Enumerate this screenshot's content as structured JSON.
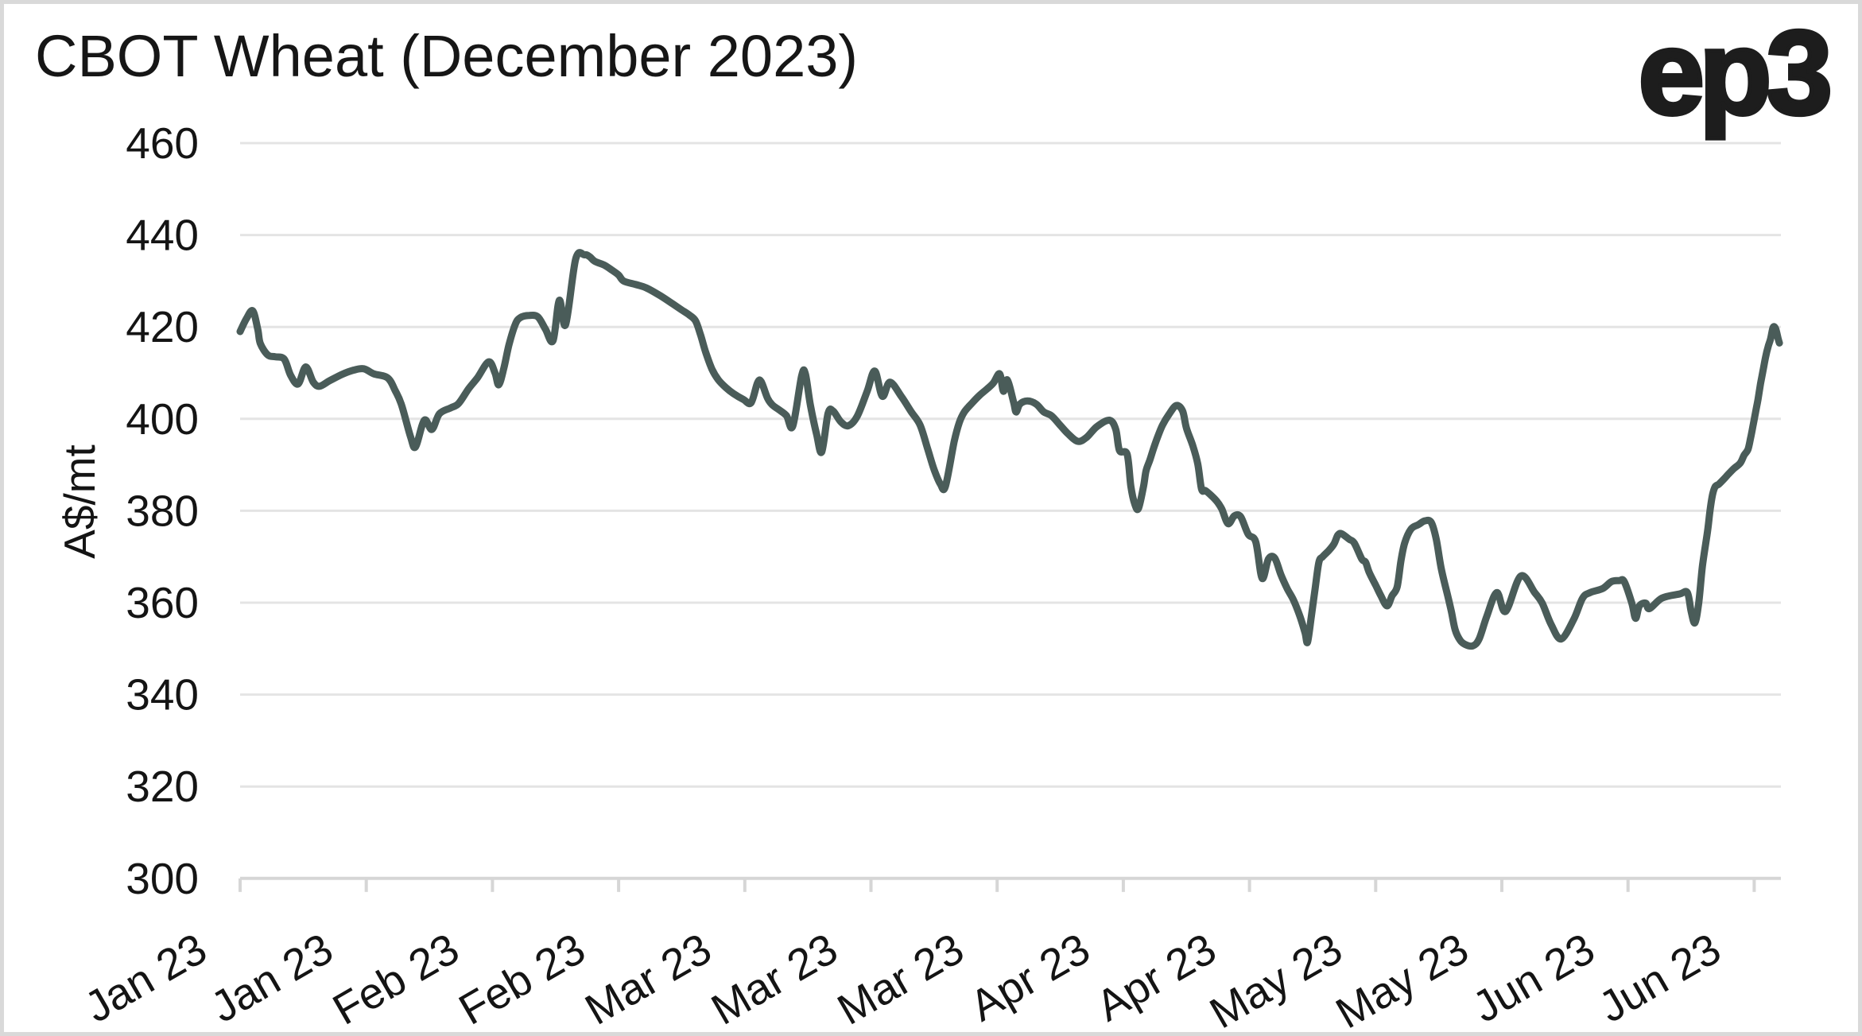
{
  "header": {
    "title": "CBOT Wheat (December 2023)",
    "logo_text": "ep3"
  },
  "colors": {
    "line": "#4a5c59",
    "gridline": "#e4e4e4",
    "axis": "#d6d6d6",
    "text": "#141414",
    "background": "#ffffff",
    "frame_border": "#d9d9d9"
  },
  "chart_data": {
    "type": "line",
    "title": "CBOT Wheat (December 2023)",
    "xlabel": "",
    "ylabel": "A$/mt",
    "ylim": [
      300,
      460
    ],
    "y_ticks": [
      300,
      320,
      340,
      360,
      380,
      400,
      420,
      440,
      460
    ],
    "x_tick_labels": [
      "Jan 23",
      "Jan 23",
      "Feb 23",
      "Feb 23",
      "Mar 23",
      "Mar 23",
      "Mar 23",
      "Apr 23",
      "Apr 23",
      "May 23",
      "May 23",
      "Jun 23",
      "Jun 23"
    ],
    "x_range_ticks": [
      0,
      12.2
    ],
    "grid": "horizontal-only",
    "legend": "none",
    "series": [
      {
        "name": "CBOT Wheat (December 2023)",
        "units": "A$/mt",
        "points": [
          [
            0.0,
            419.0
          ],
          [
            0.05,
            421.8
          ],
          [
            0.1,
            423.5
          ],
          [
            0.14,
            419.5
          ],
          [
            0.16,
            416.4
          ],
          [
            0.22,
            413.9
          ],
          [
            0.28,
            413.5
          ],
          [
            0.35,
            413.0
          ],
          [
            0.4,
            409.5
          ],
          [
            0.46,
            407.6
          ],
          [
            0.52,
            411.3
          ],
          [
            0.58,
            408.0
          ],
          [
            0.63,
            407.1
          ],
          [
            0.71,
            408.3
          ],
          [
            0.81,
            409.7
          ],
          [
            0.9,
            410.6
          ],
          [
            0.98,
            410.9
          ],
          [
            1.06,
            409.8
          ],
          [
            1.17,
            408.9
          ],
          [
            1.23,
            406.1
          ],
          [
            1.28,
            403.0
          ],
          [
            1.35,
            396.2
          ],
          [
            1.39,
            393.9
          ],
          [
            1.46,
            399.7
          ],
          [
            1.52,
            397.7
          ],
          [
            1.58,
            401.1
          ],
          [
            1.67,
            402.4
          ],
          [
            1.73,
            403.3
          ],
          [
            1.81,
            406.5
          ],
          [
            1.88,
            408.9
          ],
          [
            1.97,
            412.4
          ],
          [
            2.02,
            410.0
          ],
          [
            2.05,
            407.4
          ],
          [
            2.09,
            411.0
          ],
          [
            2.13,
            416.0
          ],
          [
            2.18,
            420.5
          ],
          [
            2.22,
            422.0
          ],
          [
            2.29,
            422.5
          ],
          [
            2.36,
            422.2
          ],
          [
            2.42,
            419.5
          ],
          [
            2.48,
            417.0
          ],
          [
            2.53,
            425.8
          ],
          [
            2.58,
            420.5
          ],
          [
            2.66,
            434.8
          ],
          [
            2.73,
            435.7
          ],
          [
            2.77,
            435.3
          ],
          [
            2.81,
            434.3
          ],
          [
            2.89,
            433.4
          ],
          [
            2.95,
            432.3
          ],
          [
            3.0,
            431.3
          ],
          [
            3.04,
            430.0
          ],
          [
            3.14,
            429.2
          ],
          [
            3.22,
            428.5
          ],
          [
            3.33,
            426.8
          ],
          [
            3.43,
            425.0
          ],
          [
            3.5,
            423.7
          ],
          [
            3.56,
            422.6
          ],
          [
            3.61,
            421.3
          ],
          [
            3.65,
            418.2
          ],
          [
            3.69,
            414.5
          ],
          [
            3.74,
            410.8
          ],
          [
            3.79,
            408.5
          ],
          [
            3.85,
            406.8
          ],
          [
            3.91,
            405.5
          ],
          [
            3.99,
            404.2
          ],
          [
            4.05,
            403.5
          ],
          [
            4.1,
            407.8
          ],
          [
            4.13,
            408.1
          ],
          [
            4.18,
            404.5
          ],
          [
            4.22,
            403.0
          ],
          [
            4.27,
            402.0
          ],
          [
            4.33,
            400.7
          ],
          [
            4.38,
            398.4
          ],
          [
            4.45,
            409.3
          ],
          [
            4.48,
            409.8
          ],
          [
            4.52,
            403.0
          ],
          [
            4.57,
            396.5
          ],
          [
            4.61,
            392.8
          ],
          [
            4.66,
            401.2
          ],
          [
            4.7,
            401.7
          ],
          [
            4.76,
            399.4
          ],
          [
            4.82,
            398.5
          ],
          [
            4.89,
            400.5
          ],
          [
            4.97,
            406.0
          ],
          [
            5.03,
            410.4
          ],
          [
            5.09,
            404.9
          ],
          [
            5.15,
            408.0
          ],
          [
            5.24,
            404.9
          ],
          [
            5.32,
            401.5
          ],
          [
            5.39,
            398.6
          ],
          [
            5.45,
            393.4
          ],
          [
            5.5,
            389.0
          ],
          [
            5.55,
            385.8
          ],
          [
            5.59,
            385.3
          ],
          [
            5.66,
            395.1
          ],
          [
            5.7,
            399.2
          ],
          [
            5.74,
            401.5
          ],
          [
            5.8,
            403.4
          ],
          [
            5.86,
            405.1
          ],
          [
            5.92,
            406.5
          ],
          [
            5.97,
            407.8
          ],
          [
            6.02,
            409.8
          ],
          [
            6.05,
            406.0
          ],
          [
            6.08,
            408.5
          ],
          [
            6.13,
            403.7
          ],
          [
            6.15,
            401.5
          ],
          [
            6.18,
            403.2
          ],
          [
            6.24,
            403.9
          ],
          [
            6.31,
            403.2
          ],
          [
            6.37,
            401.5
          ],
          [
            6.43,
            400.7
          ],
          [
            6.5,
            398.6
          ],
          [
            6.56,
            396.8
          ],
          [
            6.64,
            395.1
          ],
          [
            6.71,
            396.0
          ],
          [
            6.79,
            398.3
          ],
          [
            6.89,
            399.7
          ],
          [
            6.94,
            397.7
          ],
          [
            6.97,
            393.1
          ],
          [
            7.03,
            392.3
          ],
          [
            7.06,
            385.3
          ],
          [
            7.09,
            381.5
          ],
          [
            7.12,
            380.5
          ],
          [
            7.16,
            385.3
          ],
          [
            7.18,
            388.7
          ],
          [
            7.21,
            391.0
          ],
          [
            7.24,
            393.6
          ],
          [
            7.27,
            395.9
          ],
          [
            7.31,
            398.6
          ],
          [
            7.36,
            400.9
          ],
          [
            7.42,
            402.9
          ],
          [
            7.47,
            401.7
          ],
          [
            7.5,
            398.0
          ],
          [
            7.55,
            394.2
          ],
          [
            7.59,
            390.2
          ],
          [
            7.62,
            384.7
          ],
          [
            7.65,
            384.4
          ],
          [
            7.69,
            383.5
          ],
          [
            7.74,
            382.1
          ],
          [
            7.78,
            380.4
          ],
          [
            7.83,
            377.2
          ],
          [
            7.88,
            378.9
          ],
          [
            7.93,
            378.7
          ],
          [
            7.99,
            374.9
          ],
          [
            8.05,
            373.2
          ],
          [
            8.1,
            365.3
          ],
          [
            8.15,
            369.5
          ],
          [
            8.2,
            369.7
          ],
          [
            8.25,
            366.0
          ],
          [
            8.3,
            363.0
          ],
          [
            8.35,
            360.5
          ],
          [
            8.4,
            357.0
          ],
          [
            8.44,
            353.5
          ],
          [
            8.46,
            351.4
          ],
          [
            8.49,
            357.0
          ],
          [
            8.52,
            363.0
          ],
          [
            8.55,
            368.8
          ],
          [
            8.58,
            370.0
          ],
          [
            8.63,
            371.4
          ],
          [
            8.67,
            372.8
          ],
          [
            8.7,
            374.7
          ],
          [
            8.73,
            375.0
          ],
          [
            8.79,
            373.8
          ],
          [
            8.83,
            373.0
          ],
          [
            8.89,
            369.5
          ],
          [
            8.92,
            368.8
          ],
          [
            8.95,
            366.5
          ],
          [
            9.0,
            363.8
          ],
          [
            9.04,
            361.6
          ],
          [
            9.09,
            359.3
          ],
          [
            9.13,
            361.5
          ],
          [
            9.17,
            363.4
          ],
          [
            9.2,
            369.0
          ],
          [
            9.23,
            373.0
          ],
          [
            9.28,
            376.0
          ],
          [
            9.34,
            377.0
          ],
          [
            9.39,
            377.8
          ],
          [
            9.44,
            377.5
          ],
          [
            9.48,
            373.8
          ],
          [
            9.52,
            367.4
          ],
          [
            9.57,
            361.6
          ],
          [
            9.6,
            358.1
          ],
          [
            9.63,
            354.1
          ],
          [
            9.67,
            351.8
          ],
          [
            9.71,
            350.9
          ],
          [
            9.77,
            350.6
          ],
          [
            9.82,
            352.1
          ],
          [
            9.88,
            357.0
          ],
          [
            9.96,
            362.2
          ],
          [
            10.03,
            358.1
          ],
          [
            10.15,
            365.8
          ],
          [
            10.26,
            362.2
          ],
          [
            10.32,
            359.9
          ],
          [
            10.39,
            355.3
          ],
          [
            10.47,
            352.1
          ],
          [
            10.57,
            356.4
          ],
          [
            10.64,
            361.0
          ],
          [
            10.7,
            362.2
          ],
          [
            10.8,
            363.1
          ],
          [
            10.87,
            364.6
          ],
          [
            10.93,
            364.8
          ],
          [
            10.97,
            364.6
          ],
          [
            11.03,
            359.9
          ],
          [
            11.06,
            356.6
          ],
          [
            11.09,
            359.3
          ],
          [
            11.14,
            359.9
          ],
          [
            11.17,
            358.7
          ],
          [
            11.27,
            361.0
          ],
          [
            11.41,
            361.9
          ],
          [
            11.47,
            362.2
          ],
          [
            11.5,
            358.1
          ],
          [
            11.53,
            355.6
          ],
          [
            11.56,
            359.9
          ],
          [
            11.59,
            368.0
          ],
          [
            11.63,
            375.5
          ],
          [
            11.65,
            380.1
          ],
          [
            11.67,
            383.5
          ],
          [
            11.69,
            385.2
          ],
          [
            11.72,
            385.8
          ],
          [
            11.76,
            386.9
          ],
          [
            11.8,
            388.1
          ],
          [
            11.84,
            389.2
          ],
          [
            11.89,
            390.4
          ],
          [
            11.92,
            392.1
          ],
          [
            11.95,
            393.3
          ],
          [
            11.97,
            395.6
          ],
          [
            11.99,
            398.4
          ],
          [
            12.01,
            401.3
          ],
          [
            12.03,
            404.2
          ],
          [
            12.05,
            407.6
          ],
          [
            12.07,
            410.5
          ],
          [
            12.09,
            413.4
          ],
          [
            12.11,
            415.7
          ],
          [
            12.13,
            417.4
          ],
          [
            12.15,
            419.9
          ],
          [
            12.17,
            419.6
          ],
          [
            12.19,
            417.4
          ],
          [
            12.2,
            416.5
          ]
        ]
      }
    ]
  }
}
